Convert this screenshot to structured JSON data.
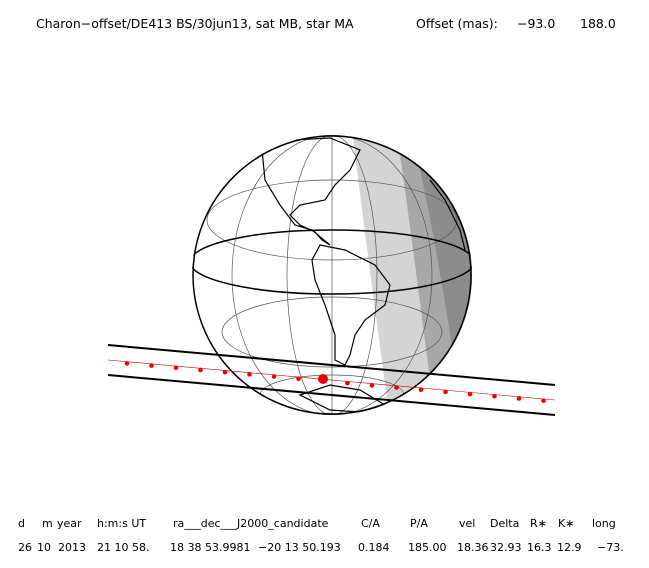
{
  "header": {
    "title": "Charon−offset/DE413 BS/30jun13, sat MB, star MA",
    "offset_label": "Offset (mas):",
    "offsets": [
      "−93.0",
      "188.0"
    ]
  },
  "table": {
    "headers": [
      "d",
      "m",
      "year",
      "h:m:s UT",
      "ra___dec___J2000_candidate",
      "C/A",
      "P/A",
      "vel",
      "Delta",
      "R∗",
      "K∗",
      "long"
    ],
    "rows": [
      [
        "26",
        "10",
        "2013",
        "21 10 58.",
        "18 38 53.9981",
        "−20 13 50.193",
        "0.184",
        "185.00",
        "18.36",
        "32.93",
        "16.3",
        "12.9",
        "−73."
      ]
    ]
  }
}
